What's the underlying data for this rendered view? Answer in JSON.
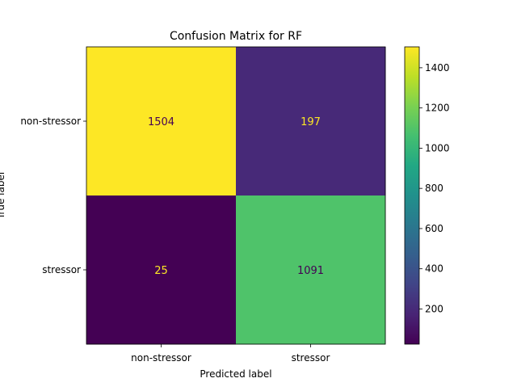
{
  "chart_data": {
    "type": "heatmap",
    "title": "Confusion Matrix for RF",
    "xlabel": "Predicted label",
    "ylabel": "True label",
    "x_categories": [
      "non-stressor",
      "stressor"
    ],
    "y_categories": [
      "non-stressor",
      "stressor"
    ],
    "values": [
      [
        1504,
        197
      ],
      [
        25,
        1091
      ]
    ],
    "colormap": "viridis",
    "colorbar": {
      "min": 25,
      "max": 1504,
      "ticks": [
        200,
        400,
        600,
        800,
        1000,
        1200,
        1400
      ]
    },
    "colors": {
      "light_text": "#fde725",
      "dark_text": "#440154"
    }
  }
}
